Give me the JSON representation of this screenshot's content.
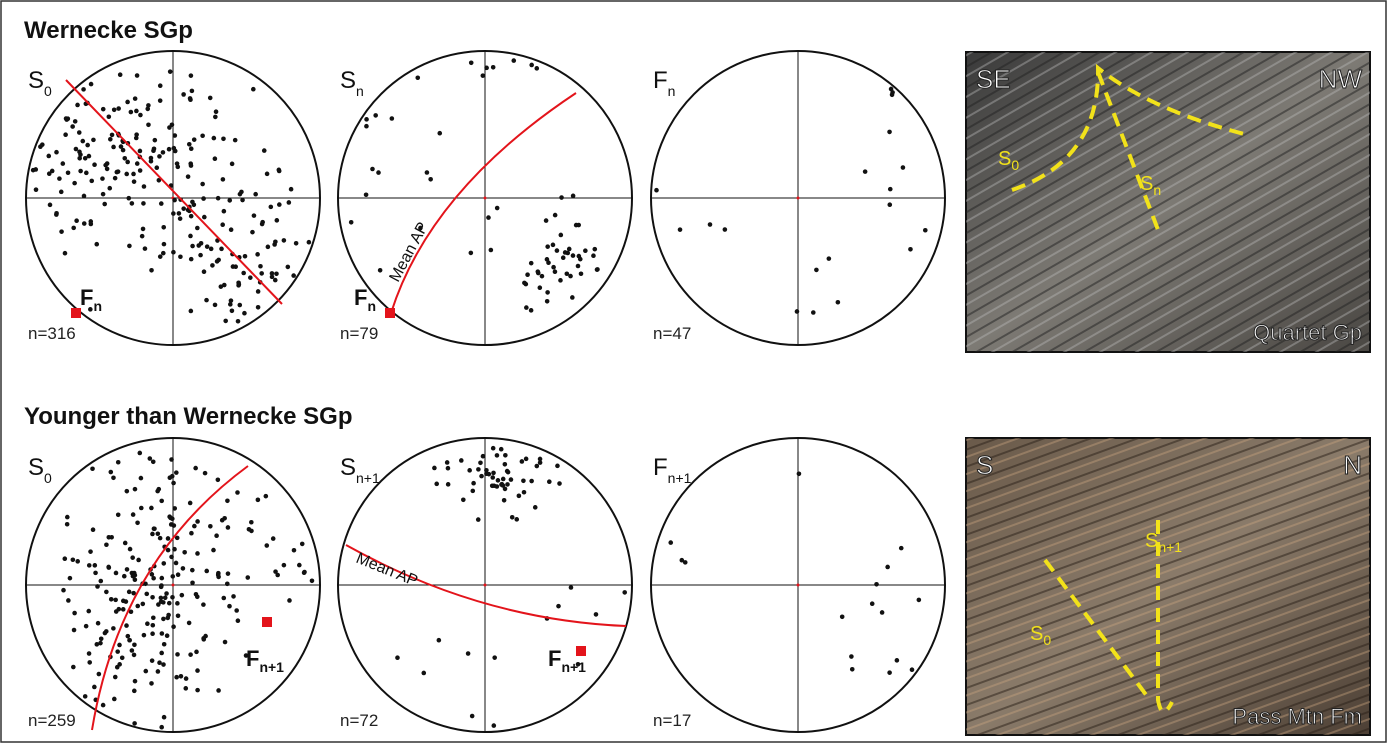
{
  "panels": [
    {
      "title": "Wernecke SGp",
      "nets": [
        {
          "label": {
            "main": "S",
            "sub": "0"
          },
          "count": "n=316",
          "fold_label": {
            "main": "F",
            "sub": "n"
          }
        },
        {
          "label": {
            "main": "S",
            "sub": "n"
          },
          "count": "n=79",
          "fold_label": {
            "main": "F",
            "sub": "n"
          },
          "plane_label": "Mean AP"
        },
        {
          "label": {
            "main": "F",
            "sub": "n"
          },
          "count": "n=47"
        }
      ],
      "photo": {
        "left": "SE",
        "right": "NW",
        "caption": "Quartet Gp",
        "traces": [
          {
            "main": "S",
            "sub": "0"
          },
          {
            "main": "S",
            "sub": "n"
          }
        ]
      }
    },
    {
      "title": "Younger than Wernecke SGp",
      "nets": [
        {
          "label": {
            "main": "S",
            "sub": "0"
          },
          "count": "n=259",
          "fold_label": {
            "main": "F",
            "sub": "n+1"
          }
        },
        {
          "label": {
            "main": "S",
            "sub": "n+1"
          },
          "count": "n=72",
          "fold_label": {
            "main": "F",
            "sub": "n+1"
          },
          "plane_label": "Mean AP"
        },
        {
          "label": {
            "main": "F",
            "sub": "n+1"
          },
          "count": "n=17"
        }
      ],
      "photo": {
        "left": "S",
        "right": "N",
        "caption": "Pass Mtn Fm",
        "traces": [
          {
            "main": "S",
            "sub": "0"
          },
          {
            "main": "S",
            "sub": "n+1"
          }
        ]
      }
    }
  ]
}
